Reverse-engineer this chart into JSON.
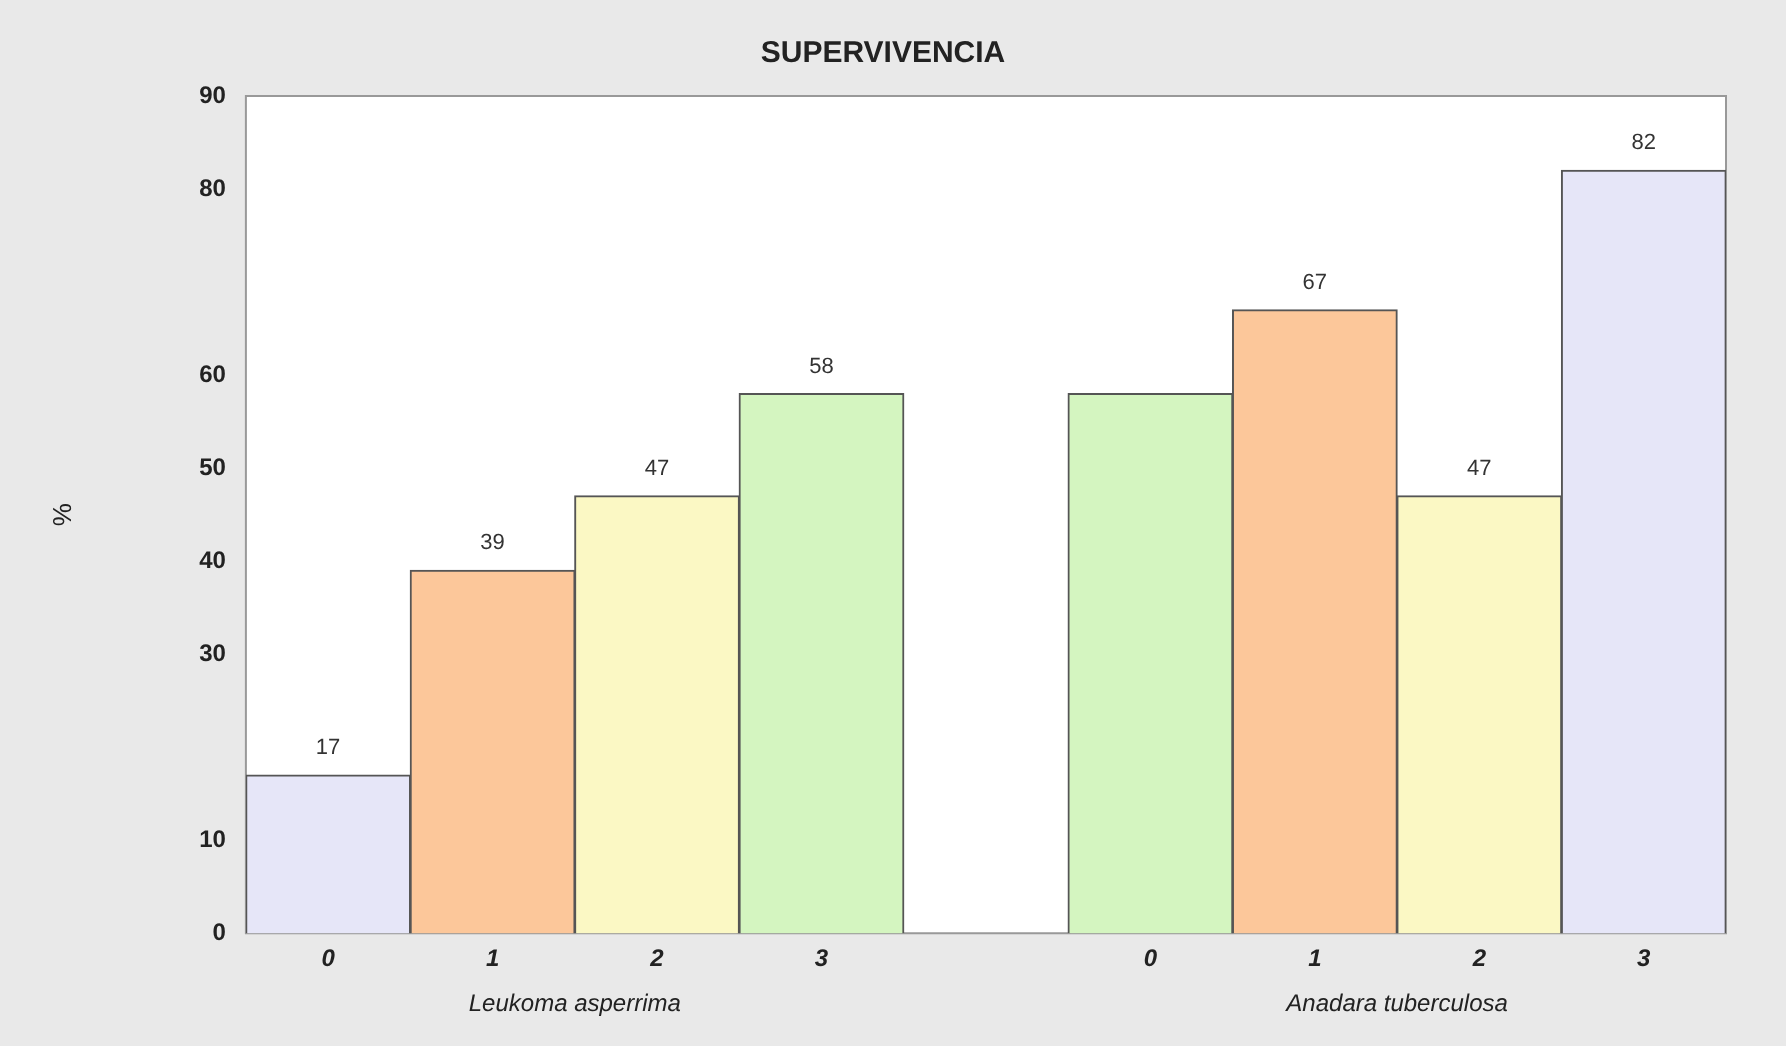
{
  "chart_data": {
    "type": "bar",
    "title": "SUPERVIVENCIA",
    "ylabel": "%",
    "categories": [
      "0",
      "1",
      "2",
      "3",
      null,
      "0",
      "1",
      "2",
      "3"
    ],
    "values": [
      17,
      39,
      47,
      58,
      null,
      58,
      67,
      47,
      82
    ],
    "colors": [
      "#e6e6f8",
      "#fcc79a",
      "#fbf8c4",
      "#d4f5c0",
      "#ffffff",
      "#d4f5c0",
      "#fcc79a",
      "#fbf8c4",
      "#e6e6f8"
    ],
    "value_labels": [
      "17",
      "39",
      "47",
      "58",
      null,
      null,
      "67",
      "47",
      "82"
    ],
    "annotations": [
      "Leukoma asperrima",
      "Anadara tuberculosa"
    ],
    "ylim": [
      0,
      90
    ],
    "yticks": [
      0,
      10,
      30,
      40,
      50,
      60,
      80,
      90
    ],
    "grid": false,
    "legend": false
  }
}
